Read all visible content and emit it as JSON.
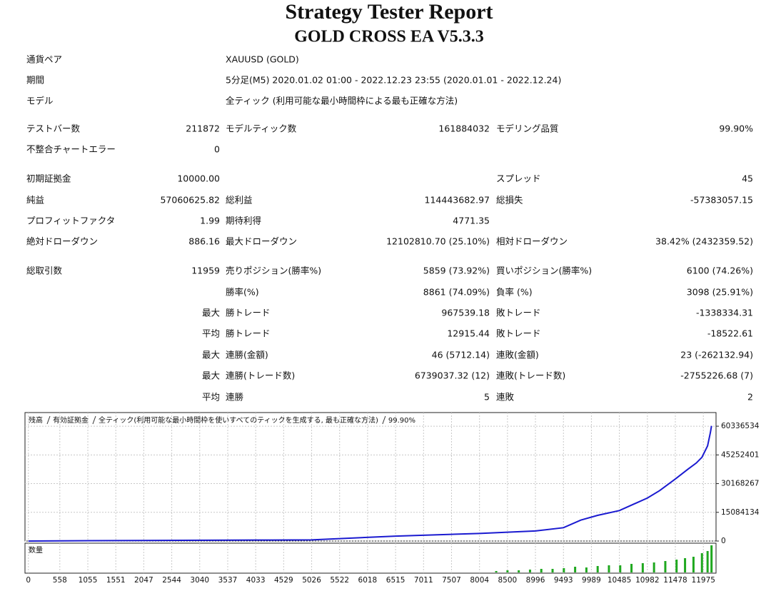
{
  "header": {
    "title": "Strategy Tester Report",
    "subtitle": "GOLD CROSS EA V5.3.3"
  },
  "info": [
    [
      "通貨ペア",
      "XAUUSD (GOLD)"
    ],
    [
      "期間",
      "5分足(M5) 2020.01.02 01:00 - 2022.12.23 23:55 (2020.01.01 - 2022.12.24)"
    ],
    [
      "モデル",
      "全ティック (利用可能な最小時間枠による最も正確な方法)"
    ]
  ],
  "stats": [
    [
      "テストバー数",
      "211872",
      "モデルティック数",
      "161884032",
      "モデリング品質",
      "99.90%"
    ],
    [
      "不整合チャートエラー",
      "0",
      null,
      null,
      null,
      null
    ],
    [
      "初期証拠金",
      "10000.00",
      null,
      null,
      "スプレッド",
      "45"
    ],
    [
      "純益",
      "57060625.82",
      "総利益",
      "114443682.97",
      "総損失",
      "-57383057.15"
    ],
    [
      "プロフィットファクタ",
      "1.99",
      "期待利得",
      "4771.35",
      null,
      null
    ],
    [
      "絶対ドローダウン",
      "886.16",
      "最大ドローダウン",
      "12102810.70 (25.10%)",
      "相対ドローダウン",
      "38.42% (2432359.52)"
    ],
    [
      "総取引数",
      "11959",
      "売りポジション(勝率%)",
      "5859 (73.92%)",
      "買いポジション(勝率%)",
      "6100 (74.26%)"
    ],
    [
      null,
      null,
      "勝率(%)",
      "8861 (74.09%)",
      "負率 (%)",
      "3098 (25.91%)"
    ],
    [
      null,
      "最大",
      "勝トレード",
      "967539.18",
      "敗トレード",
      "-1338334.31"
    ],
    [
      null,
      "平均",
      "勝トレード",
      "12915.44",
      "敗トレード",
      "-18522.61"
    ],
    [
      null,
      "最大",
      "連勝(金額)",
      "46 (5712.14)",
      "連敗(金額)",
      "23 (-262132.94)"
    ],
    [
      null,
      "最大",
      "連勝(トレード数)",
      "6739037.32 (12)",
      "連敗(トレード数)",
      "-2755226.68 (7)"
    ],
    [
      null,
      "平均",
      "連勝",
      "5",
      "連敗",
      "2"
    ]
  ],
  "chart_data": {
    "type": "line",
    "legend": [
      {
        "text": "残高",
        "color": "#1a1ad0"
      },
      {
        "text": "有効証拠金",
        "color": "#1fa81f"
      },
      {
        "text": "全ティック(利用可能な最小時間枠を使いすべてのティックを生成する, 最も正確な方法)",
        "color": "#111111"
      },
      {
        "text": "99.90%",
        "color": "#111111"
      }
    ],
    "volume_label": "数量",
    "xlim": [
      -60,
      12200
    ],
    "xticks": [
      0,
      558,
      1055,
      1551,
      2047,
      2544,
      3040,
      3537,
      4033,
      4529,
      5026,
      5522,
      6018,
      6515,
      7011,
      7507,
      8004,
      8500,
      8996,
      9493,
      9989,
      10485,
      10982,
      11478,
      11975
    ],
    "ylim": [
      0,
      67500000
    ],
    "yticks": [
      0,
      15084134,
      30168267,
      45252401,
      60336534
    ],
    "grid": true,
    "series": [
      {
        "name": "残高",
        "color": "#1a1ad0",
        "x": [
          0,
          2000,
          4000,
          5026,
          6515,
          8004,
          8996,
          9493,
          9800,
          10100,
          10485,
          10982,
          11200,
          11478,
          11700,
          11850,
          11950,
          12050,
          12100,
          12120
        ],
        "values": [
          10000,
          300000,
          500000,
          600000,
          2600000,
          4000000,
          5300000,
          7000000,
          11000000,
          13500000,
          16000000,
          22600000,
          26500000,
          32600000,
          37700000,
          41000000,
          44000000,
          50000000,
          57000000,
          60500000
        ]
      }
    ],
    "volume": {
      "color": "#1fa81f",
      "ylim": [
        0,
        40
      ],
      "x": [
        8300,
        8500,
        8700,
        8900,
        9100,
        9300,
        9500,
        9700,
        9900,
        10100,
        10300,
        10500,
        10700,
        10900,
        11100,
        11300,
        11500,
        11650,
        11800,
        11950,
        12050,
        12120
      ],
      "values": [
        2,
        3,
        3,
        4,
        5,
        5,
        6,
        8,
        7,
        9,
        10,
        10,
        12,
        13,
        14,
        16,
        18,
        20,
        22,
        27,
        30,
        38
      ]
    }
  }
}
